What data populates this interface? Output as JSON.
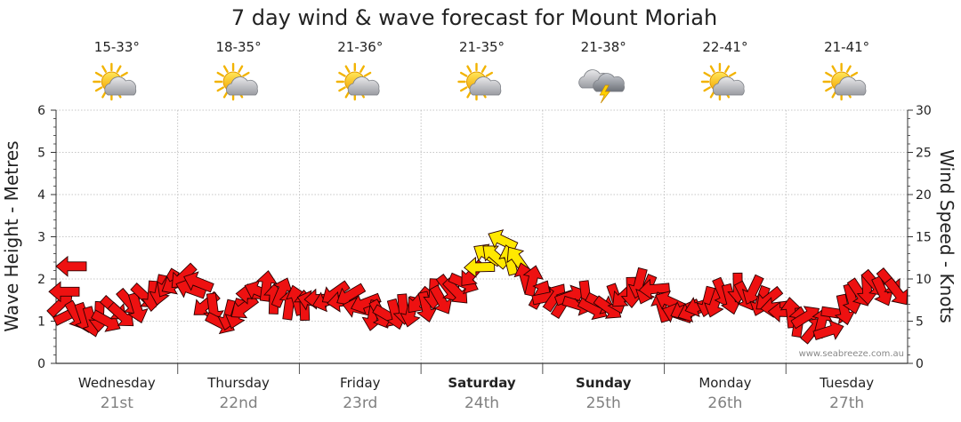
{
  "chart_data": {
    "type": "line",
    "title": "7 day wind & wave forecast for Mount Moriah",
    "ylabel_left": "Wave Height - Metres",
    "ylabel_right": "Wind Speed - Knots",
    "ylim_left": [
      0,
      6
    ],
    "ylim_right": [
      0,
      30
    ],
    "left_ticks": [
      "0",
      "1",
      "2",
      "3",
      "4",
      "5",
      "6"
    ],
    "right_ticks": [
      "0",
      "5",
      "10",
      "15",
      "20",
      "25",
      "30"
    ],
    "grid": true,
    "watermark": "www.seabreeze.com.au",
    "days": [
      {
        "name": "Wednesday",
        "date": "21st",
        "range": "15-33°",
        "icon": "partly-cloudy-icon",
        "weekend": false
      },
      {
        "name": "Thursday",
        "date": "22nd",
        "range": "18-35°",
        "icon": "partly-cloudy-icon",
        "weekend": false
      },
      {
        "name": "Friday",
        "date": "23rd",
        "range": "21-36°",
        "icon": "partly-cloudy-icon",
        "weekend": false
      },
      {
        "name": "Saturday",
        "date": "24th",
        "range": "21-35°",
        "icon": "partly-cloudy-icon",
        "weekend": true
      },
      {
        "name": "Sunday",
        "date": "25th",
        "range": "21-38°",
        "icon": "thunderstorm-icon",
        "weekend": true
      },
      {
        "name": "Monday",
        "date": "26th",
        "range": "22-41°",
        "icon": "partly-cloudy-icon",
        "weekend": false
      },
      {
        "name": "Tuesday",
        "date": "27th",
        "range": "21-41°",
        "icon": "partly-cloudy-icon",
        "weekend": false
      }
    ],
    "wind_series": {
      "name": "Wind",
      "x_hours": [
        0,
        4,
        8,
        12,
        16,
        20,
        24,
        28,
        32,
        36,
        40,
        44,
        48,
        52,
        56,
        60,
        64,
        68,
        72,
        76,
        80,
        84,
        88,
        92,
        96,
        100,
        104,
        108,
        112,
        116,
        120,
        124,
        128,
        132,
        136,
        140,
        144,
        148,
        152,
        156,
        160
      ],
      "speed_knots": [
        7,
        5.5,
        5,
        6,
        7,
        8.5,
        10,
        9,
        5,
        6,
        9,
        8,
        7,
        7.5,
        8,
        7,
        5.5,
        6,
        7,
        8,
        9,
        12,
        14,
        11,
        8,
        7.5,
        7.5,
        6.5,
        8,
        9.5,
        7,
        6,
        7,
        8,
        8.5,
        7.5,
        6,
        5,
        4,
        7,
        9
      ],
      "direction_deg": [
        250,
        60,
        80,
        30,
        60,
        90,
        150,
        200,
        40,
        120,
        220,
        300,
        260,
        180,
        140,
        200,
        40,
        80,
        120,
        60,
        30,
        200,
        230,
        240,
        330,
        300,
        60,
        20,
        110,
        100,
        250,
        160,
        140,
        60,
        90,
        120,
        220,
        320,
        300,
        90,
        60
      ],
      "colors": {
        "normal": "#ee1111",
        "strong": "#ffe800"
      }
    }
  }
}
